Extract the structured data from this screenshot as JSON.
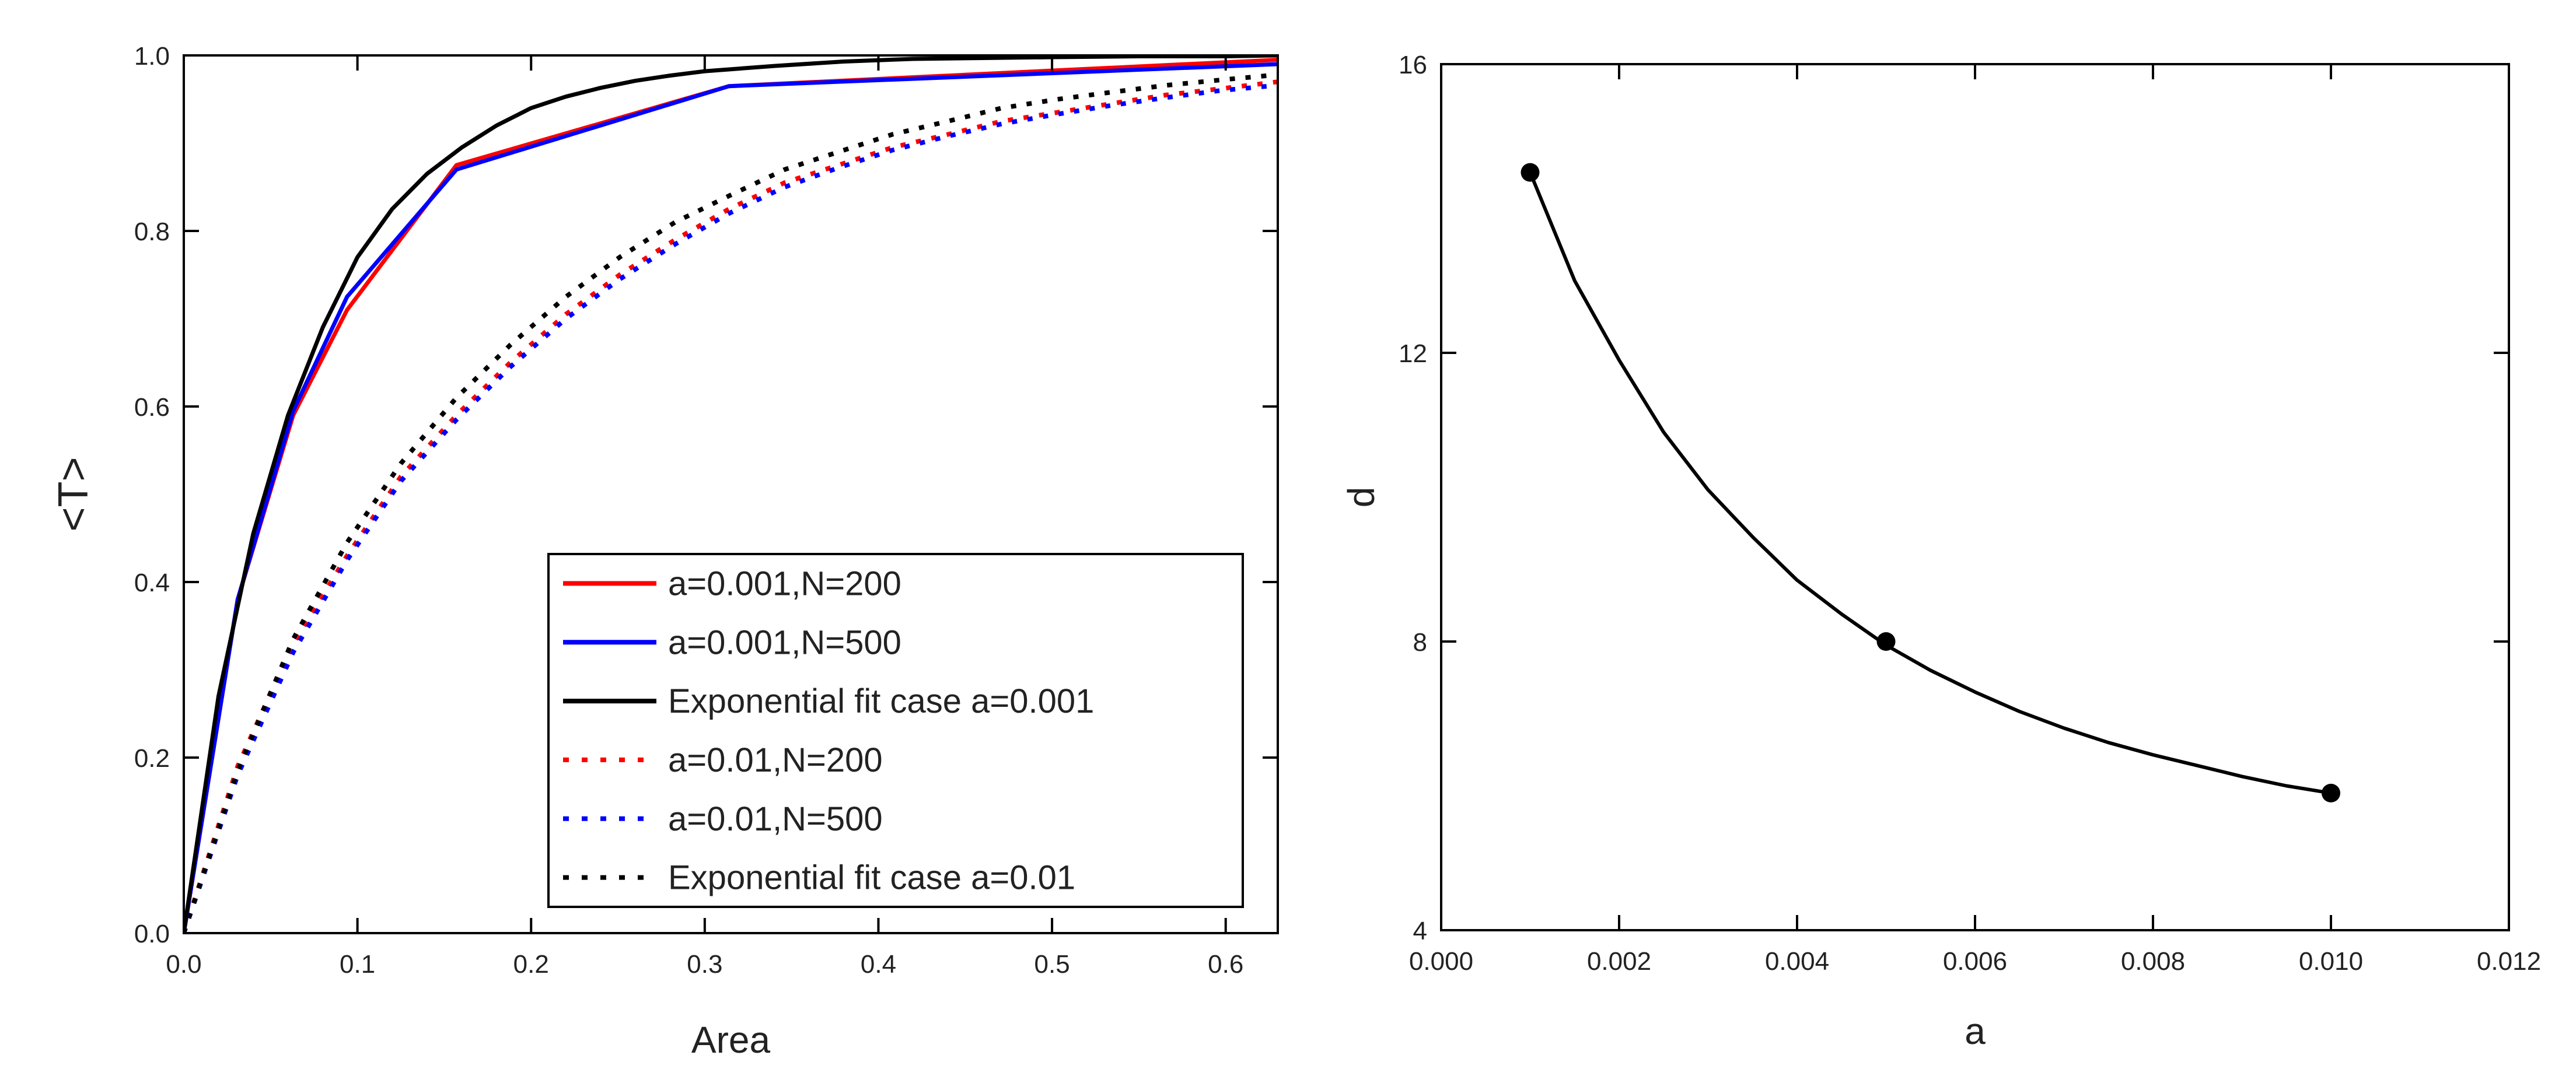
{
  "chart_data": [
    {
      "type": "line",
      "xlabel": "Area",
      "ylabel": "<T>",
      "xlim": [
        0.0,
        0.63
      ],
      "ylim": [
        0.0,
        1.0
      ],
      "xticks": [
        "0.0",
        "0.1",
        "0.2",
        "0.3",
        "0.4",
        "0.5",
        "0.6"
      ],
      "yticks": [
        "0.0",
        "0.2",
        "0.4",
        "0.6",
        "0.8",
        "1.0"
      ],
      "grid": false,
      "legend_position": "bottom-right",
      "series": [
        {
          "name": "a=0.001,N=200",
          "color": "#ff0000",
          "style": "solid",
          "x": [
            0.0,
            0.031,
            0.063,
            0.094,
            0.157,
            0.314,
            0.63
          ],
          "y": [
            0.0,
            0.38,
            0.59,
            0.71,
            0.875,
            0.965,
            0.995
          ]
        },
        {
          "name": "a=0.001,N=500",
          "color": "#0000ff",
          "style": "solid",
          "x": [
            0.0,
            0.031,
            0.063,
            0.094,
            0.157,
            0.314,
            0.63
          ],
          "y": [
            0.0,
            0.38,
            0.595,
            0.725,
            0.87,
            0.965,
            0.99
          ]
        },
        {
          "name": "Exponential fit case a=0.001",
          "color": "#000000",
          "style": "solid",
          "x": [
            0.0,
            0.02,
            0.04,
            0.06,
            0.08,
            0.1,
            0.12,
            0.14,
            0.16,
            0.18,
            0.2,
            0.22,
            0.24,
            0.26,
            0.28,
            0.3,
            0.34,
            0.38,
            0.42,
            0.46,
            0.5,
            0.55,
            0.6,
            0.63
          ],
          "y": [
            0.0,
            0.27,
            0.455,
            0.59,
            0.69,
            0.77,
            0.825,
            0.865,
            0.895,
            0.92,
            0.94,
            0.953,
            0.963,
            0.971,
            0.977,
            0.982,
            0.988,
            0.993,
            0.996,
            0.997,
            0.998,
            0.999,
            0.999,
            1.0
          ]
        },
        {
          "name": "a=0.01,N=200",
          "color": "#ff0000",
          "style": "dotted",
          "x": [
            0.0,
            0.031,
            0.063,
            0.094,
            0.125,
            0.157,
            0.188,
            0.22,
            0.251,
            0.283,
            0.314,
            0.346,
            0.377,
            0.408,
            0.44,
            0.471,
            0.503,
            0.534,
            0.566,
            0.597,
            0.63
          ],
          "y": [
            0.0,
            0.19,
            0.33,
            0.43,
            0.52,
            0.59,
            0.65,
            0.705,
            0.75,
            0.79,
            0.825,
            0.855,
            0.875,
            0.895,
            0.91,
            0.925,
            0.935,
            0.945,
            0.955,
            0.962,
            0.97
          ]
        },
        {
          "name": "a=0.01,N=500",
          "color": "#0000ff",
          "style": "dotted",
          "x": [
            0.0,
            0.031,
            0.063,
            0.094,
            0.125,
            0.157,
            0.188,
            0.22,
            0.251,
            0.283,
            0.314,
            0.346,
            0.377,
            0.408,
            0.44,
            0.471,
            0.503,
            0.534,
            0.566,
            0.597,
            0.63
          ],
          "y": [
            0.0,
            0.18,
            0.32,
            0.425,
            0.515,
            0.585,
            0.645,
            0.7,
            0.745,
            0.785,
            0.82,
            0.85,
            0.872,
            0.892,
            0.908,
            0.922,
            0.933,
            0.943,
            0.952,
            0.96,
            0.966
          ]
        },
        {
          "name": "Exponential fit case a=0.01",
          "color": "#000000",
          "style": "dotted",
          "x": [
            0.0,
            0.031,
            0.063,
            0.094,
            0.125,
            0.157,
            0.188,
            0.22,
            0.251,
            0.283,
            0.314,
            0.346,
            0.377,
            0.408,
            0.44,
            0.471,
            0.503,
            0.534,
            0.566,
            0.597,
            0.63
          ],
          "y": [
            0.0,
            0.185,
            0.335,
            0.445,
            0.535,
            0.61,
            0.67,
            0.725,
            0.77,
            0.81,
            0.84,
            0.87,
            0.89,
            0.91,
            0.925,
            0.94,
            0.95,
            0.958,
            0.966,
            0.972,
            0.978
          ]
        }
      ]
    },
    {
      "type": "scatter",
      "xlabel": "a",
      "ylabel": "d",
      "xlim": [
        0.0,
        0.012
      ],
      "ylim": [
        4,
        16
      ],
      "xticks": [
        "0.000",
        "0.002",
        "0.004",
        "0.006",
        "0.008",
        "0.010",
        "0.012"
      ],
      "yticks": [
        "4",
        "8",
        "12",
        "16"
      ],
      "grid": false,
      "series": [
        {
          "style": "markers",
          "color": "#000000",
          "x": [
            0.001,
            0.005,
            0.01
          ],
          "y": [
            14.5,
            8.0,
            5.9
          ]
        },
        {
          "style": "fit-line",
          "color": "#000000",
          "x": [
            0.001,
            0.0015,
            0.002,
            0.0025,
            0.003,
            0.0035,
            0.004,
            0.0045,
            0.005,
            0.0055,
            0.006,
            0.0065,
            0.007,
            0.0075,
            0.008,
            0.0085,
            0.009,
            0.0095,
            0.01
          ],
          "y": [
            14.5,
            13.0,
            11.9,
            10.9,
            10.1,
            9.45,
            8.85,
            8.38,
            7.95,
            7.6,
            7.3,
            7.03,
            6.8,
            6.6,
            6.43,
            6.28,
            6.13,
            6.0,
            5.9
          ]
        }
      ]
    }
  ]
}
